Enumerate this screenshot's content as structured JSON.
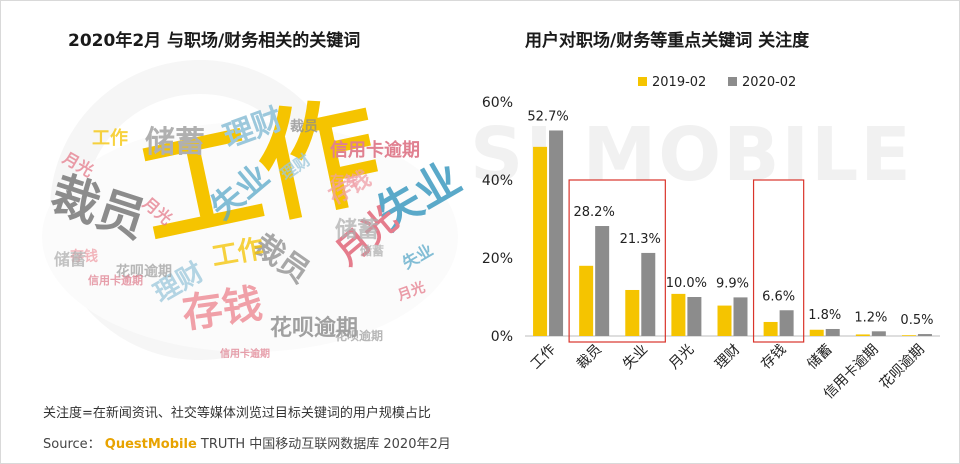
{
  "left_title": "2020年2月 与职场/财务相关的关键词",
  "right_title": "用户对职场/财务等重点关键词 关注度",
  "watermark": "SI MOBILE",
  "word_cloud": [
    {
      "text": "工作",
      "color": "#f5c400",
      "weight": 1.0
    },
    {
      "text": "裁员",
      "color": "#8c8c8c",
      "weight": 0.55
    },
    {
      "text": "失业",
      "color": "#5aa9c9",
      "weight": 0.5
    },
    {
      "text": "存钱",
      "color": "#f0a0a8",
      "weight": 0.42
    },
    {
      "text": "储蓄",
      "color": "#b0b0b0",
      "weight": 0.35
    },
    {
      "text": "月光",
      "color": "#e57c8c",
      "weight": 0.32
    },
    {
      "text": "理财",
      "color": "#9cc8dc",
      "weight": 0.32
    },
    {
      "text": "花呗逾期",
      "color": "#a0a0a0",
      "weight": 0.22
    },
    {
      "text": "信用卡逾期",
      "color": "#e08090",
      "weight": 0.2
    }
  ],
  "note": "关注度=在新闻资讯、社交等媒体浏览过目标关键词的用户规模占比",
  "source": {
    "label": "Source：",
    "brand": "QuestMobile",
    "rest": "TRUTH 中国移动互联网数据库 2020年2月"
  },
  "chart_data": {
    "type": "bar",
    "title": "用户对职场/财务等重点关键词 关注度",
    "categories": [
      "工作",
      "裁员",
      "失业",
      "月光",
      "理财",
      "存钱",
      "储蓄",
      "信用卡逾期",
      "花呗逾期"
    ],
    "series": [
      {
        "name": "2019-02",
        "color": "#f5c400",
        "values": [
          48.5,
          18.0,
          11.8,
          10.8,
          7.8,
          3.6,
          1.6,
          0.4,
          0.2
        ]
      },
      {
        "name": "2020-02",
        "color": "#8c8c8c",
        "values": [
          52.7,
          28.2,
          21.3,
          10.0,
          9.9,
          6.6,
          1.8,
          1.2,
          0.5
        ]
      }
    ],
    "data_labels": [
      "52.7%",
      "28.2%",
      "21.3%",
      "10.0%",
      "9.9%",
      "6.6%",
      "1.8%",
      "1.2%",
      "0.5%"
    ],
    "ylim": [
      0,
      60
    ],
    "yticks": [
      "0%",
      "20%",
      "40%",
      "60%"
    ],
    "ytick_values": [
      0,
      20,
      40,
      60
    ],
    "highlighted_categories": [
      [
        "裁员",
        "失业"
      ],
      [
        "存钱"
      ]
    ],
    "highlight_color": "#d9342b",
    "legend_position": "top",
    "grid": false
  }
}
